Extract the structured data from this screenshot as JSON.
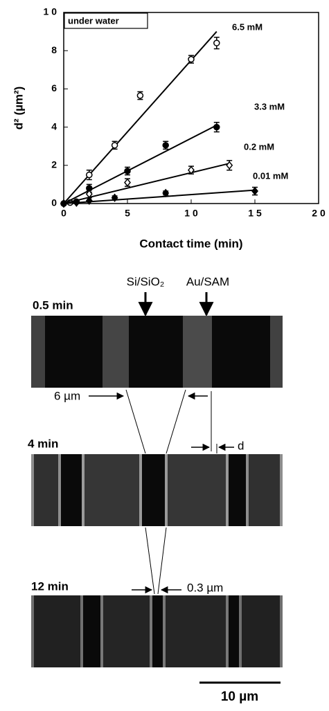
{
  "chart_data": {
    "type": "scatter",
    "x_label": "Contact time (min)",
    "y_label": "d² (µm²)",
    "annotation": "under water",
    "xlim": [
      0,
      20
    ],
    "ylim": [
      0,
      10
    ],
    "xticks": [
      0,
      5,
      {
        "value": 10,
        "label": "1 0"
      },
      {
        "value": 15,
        "label": "1 5"
      },
      {
        "value": 20,
        "label": "2 0"
      }
    ],
    "yticks": [
      0,
      2,
      4,
      6,
      8,
      {
        "value": 10,
        "label": "1 0"
      }
    ],
    "series": [
      {
        "name": "6.5  mM",
        "color": "#000000",
        "marker": "open-circle",
        "x": [
          0,
          0.5,
          1,
          2,
          4,
          6,
          10,
          12
        ],
        "values": [
          0,
          0.05,
          0.1,
          1.5,
          3.05,
          5.65,
          7.55,
          8.4
        ],
        "errors": [
          0,
          0,
          0,
          0.25,
          0.2,
          0.2,
          0.2,
          0.3
        ],
        "fit": {
          "x": [
            0,
            12
          ],
          "y": [
            0,
            9
          ]
        }
      },
      {
        "name": "3.3  mM",
        "color": "#000000",
        "marker": "filled-circle",
        "x": [
          0,
          2,
          5,
          8,
          12
        ],
        "values": [
          0,
          0.8,
          1.7,
          3.05,
          4.0
        ],
        "errors": [
          0,
          0.2,
          0.2,
          0.2,
          0.25
        ],
        "fit": {
          "x": [
            0,
            12
          ],
          "y": [
            0,
            4.1
          ]
        }
      },
      {
        "name": "0.2  mM",
        "color": "#000000",
        "marker": "open-diamond",
        "x": [
          0,
          2,
          5,
          10,
          13
        ],
        "values": [
          0,
          0.5,
          1.1,
          1.75,
          2.0
        ],
        "errors": [
          0,
          0.2,
          0.2,
          0.2,
          0.25
        ],
        "fit": {
          "x": [
            0,
            13
          ],
          "y": [
            0,
            2.1
          ]
        }
      },
      {
        "name": "0.01  mM",
        "color": "#000000",
        "marker": "filled-diamond",
        "x": [
          0,
          1,
          2,
          4,
          8,
          15
        ],
        "values": [
          0,
          0.05,
          0.15,
          0.3,
          0.55,
          0.65
        ],
        "errors": [
          0,
          0,
          0,
          0.1,
          0.1,
          0.2
        ],
        "fit": {
          "x": [
            0,
            15
          ],
          "y": [
            0,
            0.7
          ]
        }
      }
    ]
  },
  "micrographs": {
    "region_labels": [
      "Si/SiO₂",
      "Au/SAM"
    ],
    "panels": [
      {
        "label": "0.5 min"
      },
      {
        "label": "4 min"
      },
      {
        "label": "12 min"
      }
    ],
    "stripe_width": "6 µm",
    "gap_label": "d",
    "gap_width": "0.3 µm",
    "scale_bar": "10 µm"
  }
}
